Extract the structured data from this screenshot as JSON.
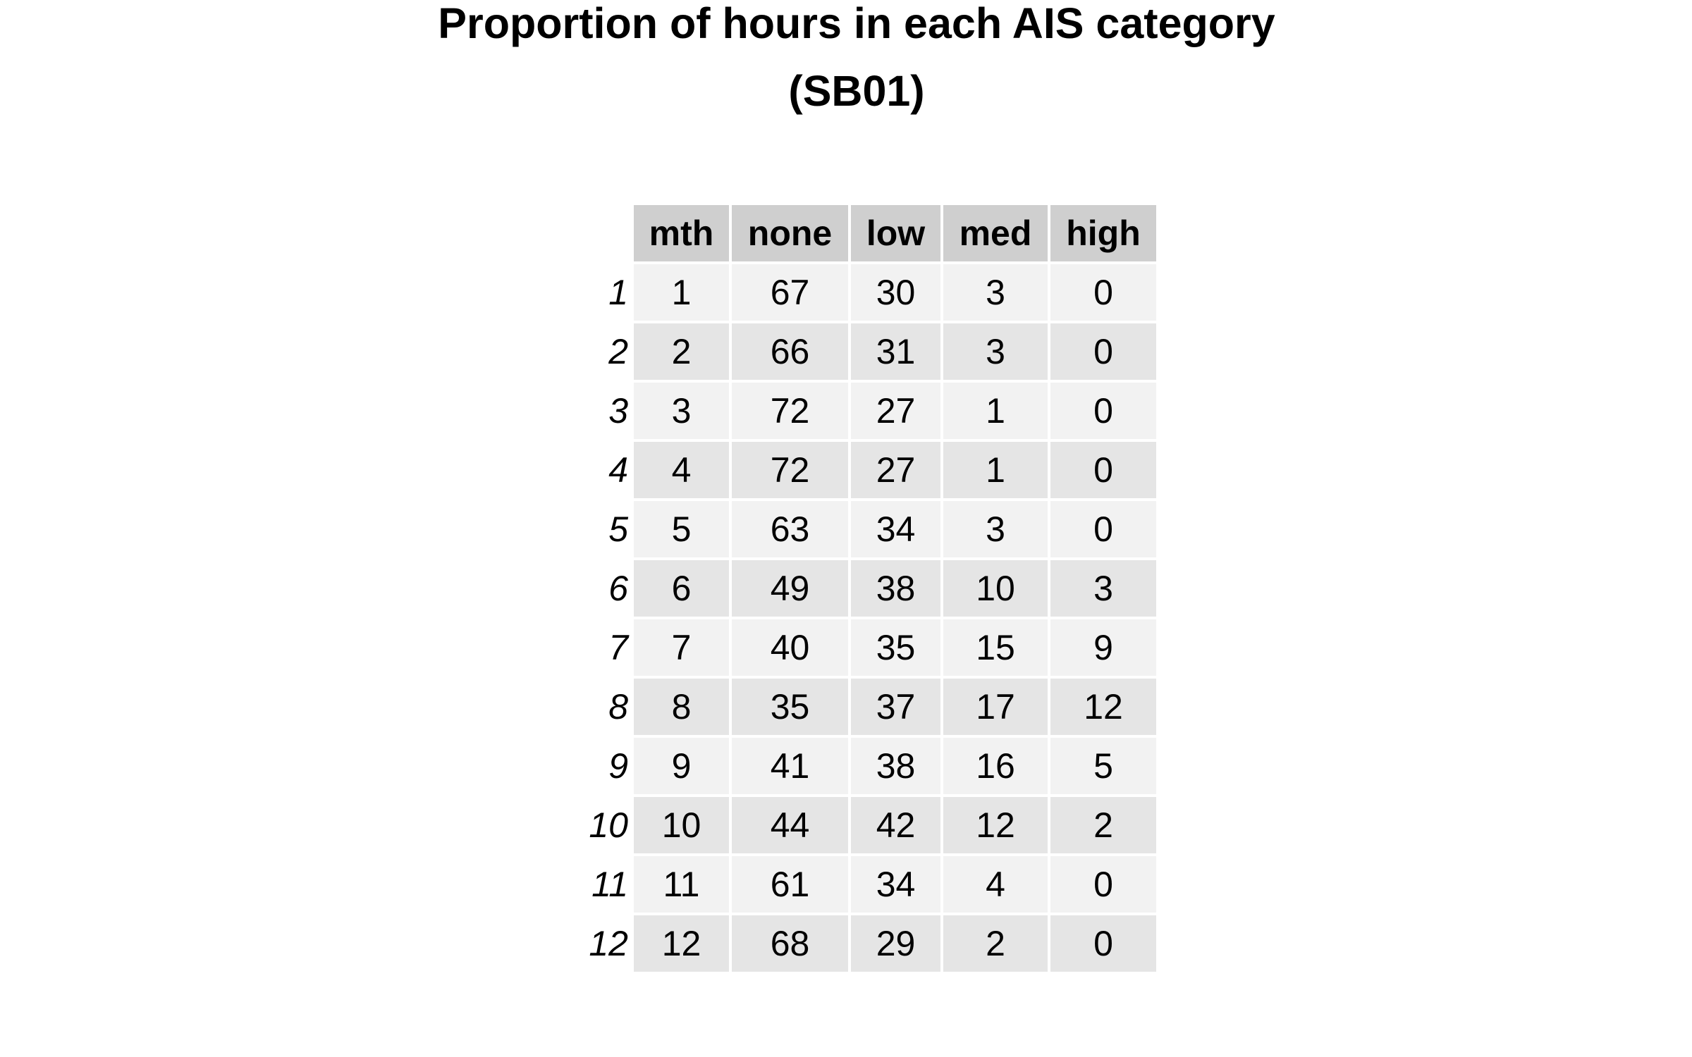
{
  "chart_data": {
    "type": "table",
    "title": "Proportion of hours in each AIS category",
    "subtitle": "(SB01)",
    "columns": [
      "mth",
      "none",
      "low",
      "med",
      "high"
    ],
    "row_labels": [
      "1",
      "2",
      "3",
      "4",
      "5",
      "6",
      "7",
      "8",
      "9",
      "10",
      "11",
      "12"
    ],
    "rows": [
      [
        "1",
        "67",
        "30",
        "3",
        "0"
      ],
      [
        "2",
        "66",
        "31",
        "3",
        "0"
      ],
      [
        "3",
        "72",
        "27",
        "1",
        "0"
      ],
      [
        "4",
        "72",
        "27",
        "1",
        "0"
      ],
      [
        "5",
        "63",
        "34",
        "3",
        "0"
      ],
      [
        "6",
        "49",
        "38",
        "10",
        "3"
      ],
      [
        "7",
        "40",
        "35",
        "15",
        "9"
      ],
      [
        "8",
        "35",
        "37",
        "17",
        "12"
      ],
      [
        "9",
        "41",
        "38",
        "16",
        "5"
      ],
      [
        "10",
        "44",
        "42",
        "12",
        "2"
      ],
      [
        "11",
        "61",
        "34",
        "4",
        "0"
      ],
      [
        "12",
        "68",
        "29",
        "2",
        "0"
      ]
    ],
    "colors": {
      "header_fill": "#cfcfcf",
      "row_fill_odd": "#f2f2f2",
      "row_fill_even": "#e5e5e5"
    }
  }
}
